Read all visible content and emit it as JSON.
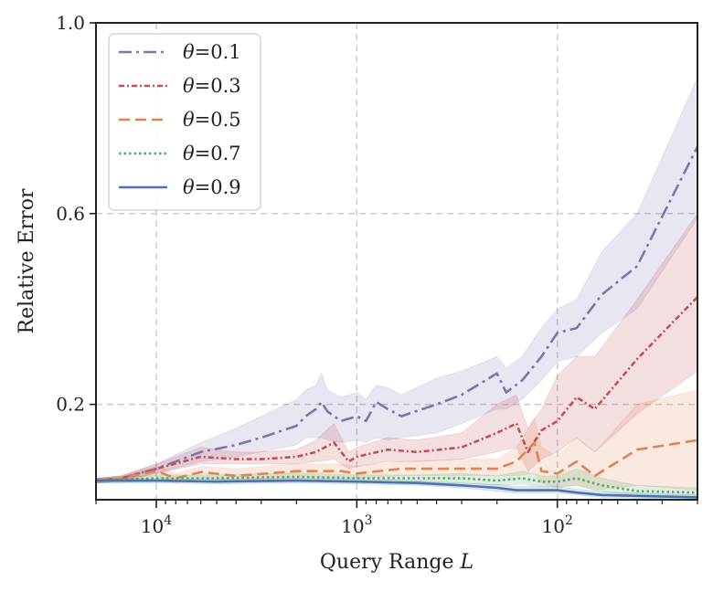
{
  "chart_data": {
    "type": "line",
    "x_scale": "log",
    "x_reversed": true,
    "xlim": [
      20000,
      20
    ],
    "ylim": [
      0.0,
      1.0
    ],
    "grid": true,
    "legend_position": "top-left",
    "xlabel": "Query Range L",
    "ylabel": "Relative Error",
    "x_ticks": [
      {
        "value": 10000,
        "base": "10",
        "exp": "4"
      },
      {
        "value": 1000,
        "base": "10",
        "exp": "3"
      },
      {
        "value": 100,
        "base": "10",
        "exp": "2"
      }
    ],
    "y_ticks": [
      {
        "value": 0.2,
        "label": "0.2"
      },
      {
        "value": 0.6,
        "label": "0.6"
      },
      {
        "value": 1.0,
        "label": "1.0"
      }
    ],
    "series": [
      {
        "name": "θ=0.1",
        "theta_label": "θ",
        "value_label": "=0.1",
        "color": "#8172b3",
        "dash": "14 5 3 5",
        "points": [
          [
            20000,
            0.04
          ],
          [
            15000,
            0.045
          ],
          [
            10000,
            0.065
          ],
          [
            6000,
            0.1
          ],
          [
            4000,
            0.115
          ],
          [
            3000,
            0.13
          ],
          [
            2000,
            0.155
          ],
          [
            1800,
            0.175
          ],
          [
            1600,
            0.19
          ],
          [
            1500,
            0.205
          ],
          [
            1400,
            0.185
          ],
          [
            1200,
            0.165
          ],
          [
            1000,
            0.175
          ],
          [
            900,
            0.165
          ],
          [
            800,
            0.205
          ],
          [
            700,
            0.19
          ],
          [
            600,
            0.175
          ],
          [
            400,
            0.2
          ],
          [
            300,
            0.22
          ],
          [
            200,
            0.265
          ],
          [
            180,
            0.225
          ],
          [
            150,
            0.25
          ],
          [
            120,
            0.3
          ],
          [
            100,
            0.35
          ],
          [
            80,
            0.36
          ],
          [
            60,
            0.43
          ],
          [
            40,
            0.49
          ],
          [
            20,
            0.74
          ]
        ],
        "lower": [
          0.035,
          0.04,
          0.055,
          0.08,
          0.09,
          0.1,
          0.115,
          0.13,
          0.13,
          0.13,
          0.125,
          0.12,
          0.125,
          0.12,
          0.13,
          0.125,
          0.13,
          0.14,
          0.16,
          0.19,
          0.19,
          0.21,
          0.25,
          0.29,
          0.3,
          0.35,
          0.4,
          0.59
        ],
        "upper": [
          0.045,
          0.05,
          0.075,
          0.12,
          0.15,
          0.175,
          0.21,
          0.23,
          0.24,
          0.265,
          0.23,
          0.215,
          0.225,
          0.21,
          0.24,
          0.235,
          0.22,
          0.255,
          0.27,
          0.3,
          0.275,
          0.3,
          0.36,
          0.4,
          0.42,
          0.52,
          0.6,
          0.885
        ]
      },
      {
        "name": "θ=0.3",
        "theta_label": "θ",
        "value_label": "=0.3",
        "color": "#c44e52",
        "dash": "6 3 2 3",
        "points": [
          [
            20000,
            0.04
          ],
          [
            15000,
            0.045
          ],
          [
            10000,
            0.065
          ],
          [
            6000,
            0.09
          ],
          [
            4000,
            0.085
          ],
          [
            3000,
            0.085
          ],
          [
            2000,
            0.09
          ],
          [
            1600,
            0.1
          ],
          [
            1300,
            0.12
          ],
          [
            1100,
            0.08
          ],
          [
            1000,
            0.09
          ],
          [
            700,
            0.105
          ],
          [
            500,
            0.1
          ],
          [
            300,
            0.11
          ],
          [
            200,
            0.14
          ],
          [
            160,
            0.16
          ],
          [
            140,
            0.1
          ],
          [
            120,
            0.145
          ],
          [
            100,
            0.165
          ],
          [
            80,
            0.215
          ],
          [
            65,
            0.19
          ],
          [
            40,
            0.295
          ],
          [
            20,
            0.425
          ]
        ],
        "lower": [
          0.035,
          0.04,
          0.055,
          0.075,
          0.075,
          0.075,
          0.075,
          0.08,
          0.085,
          0.065,
          0.07,
          0.08,
          0.08,
          0.085,
          0.1,
          0.11,
          0.06,
          0.085,
          0.1,
          0.13,
          0.1,
          0.18,
          0.27
        ],
        "upper": [
          0.045,
          0.05,
          0.075,
          0.11,
          0.1,
          0.1,
          0.105,
          0.125,
          0.16,
          0.1,
          0.11,
          0.13,
          0.125,
          0.14,
          0.2,
          0.22,
          0.15,
          0.19,
          0.26,
          0.3,
          0.3,
          0.42,
          0.6
        ]
      },
      {
        "name": "θ=0.5",
        "theta_label": "θ",
        "value_label": "=0.5",
        "color": "#dd8452",
        "dash": "12 6",
        "points": [
          [
            20000,
            0.04
          ],
          [
            15000,
            0.045
          ],
          [
            10000,
            0.06
          ],
          [
            8000,
            0.045
          ],
          [
            6000,
            0.058
          ],
          [
            4000,
            0.05
          ],
          [
            2000,
            0.06
          ],
          [
            1200,
            0.06
          ],
          [
            1000,
            0.055
          ],
          [
            600,
            0.065
          ],
          [
            300,
            0.065
          ],
          [
            200,
            0.065
          ],
          [
            160,
            0.08
          ],
          [
            130,
            0.12
          ],
          [
            120,
            0.06
          ],
          [
            100,
            0.055
          ],
          [
            80,
            0.08
          ],
          [
            65,
            0.05
          ],
          [
            40,
            0.105
          ],
          [
            20,
            0.125
          ]
        ],
        "lower": [
          0.035,
          0.04,
          0.05,
          0.035,
          0.045,
          0.04,
          0.045,
          0.045,
          0.045,
          0.05,
          0.05,
          0.05,
          0.05,
          0.055,
          0.035,
          0.025,
          0.03,
          0.02,
          0.03,
          0.02
        ],
        "upper": [
          0.045,
          0.05,
          0.07,
          0.055,
          0.07,
          0.065,
          0.075,
          0.075,
          0.07,
          0.08,
          0.085,
          0.085,
          0.11,
          0.17,
          0.11,
          0.09,
          0.13,
          0.1,
          0.2,
          0.23
        ]
      },
      {
        "name": "θ=0.7",
        "theta_label": "θ",
        "value_label": "=0.7",
        "color": "#55a868",
        "dash": "2.5 3",
        "points": [
          [
            20000,
            0.04
          ],
          [
            10000,
            0.045
          ],
          [
            5000,
            0.045
          ],
          [
            2000,
            0.048
          ],
          [
            1000,
            0.045
          ],
          [
            500,
            0.045
          ],
          [
            300,
            0.045
          ],
          [
            200,
            0.04
          ],
          [
            150,
            0.045
          ],
          [
            120,
            0.038
          ],
          [
            100,
            0.038
          ],
          [
            80,
            0.045
          ],
          [
            60,
            0.03
          ],
          [
            40,
            0.018
          ],
          [
            20,
            0.015
          ]
        ],
        "lower": [
          0.035,
          0.038,
          0.038,
          0.04,
          0.038,
          0.038,
          0.035,
          0.03,
          0.033,
          0.028,
          0.028,
          0.03,
          0.018,
          0.008,
          0.005
        ],
        "upper": [
          0.045,
          0.052,
          0.052,
          0.056,
          0.052,
          0.052,
          0.055,
          0.05,
          0.06,
          0.05,
          0.05,
          0.065,
          0.045,
          0.03,
          0.025
        ]
      },
      {
        "name": "θ=0.9",
        "theta_label": "θ",
        "value_label": "=0.9",
        "color": "#4c72b0",
        "dash": "",
        "points": [
          [
            20000,
            0.04
          ],
          [
            10000,
            0.04
          ],
          [
            5000,
            0.038
          ],
          [
            2000,
            0.04
          ],
          [
            1000,
            0.038
          ],
          [
            500,
            0.035
          ],
          [
            300,
            0.03
          ],
          [
            200,
            0.025
          ],
          [
            160,
            0.02
          ],
          [
            120,
            0.02
          ],
          [
            100,
            0.02
          ],
          [
            80,
            0.015
          ],
          [
            60,
            0.01
          ],
          [
            40,
            0.008
          ],
          [
            20,
            0.005
          ]
        ],
        "lower": [
          0.035,
          0.035,
          0.033,
          0.035,
          0.033,
          0.03,
          0.025,
          0.018,
          0.014,
          0.014,
          0.014,
          0.01,
          0.005,
          0.003,
          0.0
        ],
        "upper": [
          0.045,
          0.045,
          0.043,
          0.045,
          0.043,
          0.04,
          0.035,
          0.032,
          0.028,
          0.028,
          0.028,
          0.022,
          0.017,
          0.014,
          0.01
        ]
      }
    ]
  }
}
